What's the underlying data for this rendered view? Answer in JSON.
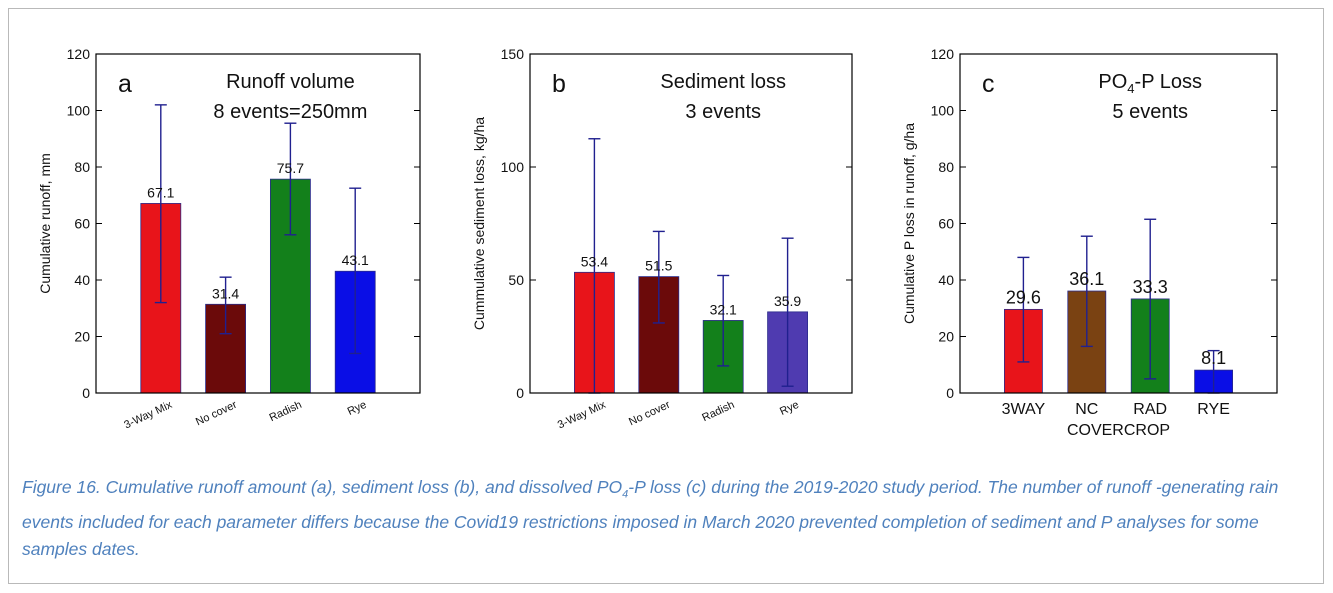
{
  "caption": {
    "p1": "Figure 16.  Cumulative runoff amount (a), sediment loss (b), and dissolved PO",
    "sub1": "4",
    "p2": "-P loss (c) during the 2019-2020 study period. The number of runoff -generating rain events included for each parameter differs because the Covid19 restrictions imposed in March 2020 prevented completion of sediment and P analyses for some samples dates."
  },
  "chart_data": [
    {
      "type": "bar",
      "panel_letter": "a",
      "title_lines": [
        "Runoff volume",
        "8 events=250mm"
      ],
      "ylabel": "Cumulative runoff, mm",
      "xlabel": "",
      "ylim": [
        0,
        120
      ],
      "yticks": [
        0,
        20,
        40,
        60,
        80,
        100,
        120
      ],
      "categories": [
        "3-Way Mix",
        "No cover",
        "Radish",
        "Rye"
      ],
      "values": [
        67.1,
        31.4,
        75.7,
        43.1
      ],
      "value_labels": [
        "67.1",
        "31.4",
        "75.7",
        "43.1"
      ],
      "error_low": [
        32,
        21,
        56,
        14
      ],
      "error_high": [
        102,
        41,
        95.5,
        72.5
      ],
      "colors": [
        "#e8141a",
        "#6b0a0a",
        "#13801b",
        "#0a0ee6"
      ]
    },
    {
      "type": "bar",
      "panel_letter": "b",
      "title_lines": [
        "Sediment loss",
        "3 events"
      ],
      "ylabel": "Cummulative sediment loss, kg/ha",
      "xlabel": "",
      "ylim": [
        0,
        150
      ],
      "yticks": [
        0,
        50,
        100,
        150
      ],
      "categories": [
        "3-Way Mix",
        "No cover",
        "Radish",
        "Rye"
      ],
      "values": [
        53.4,
        51.5,
        32.1,
        35.9
      ],
      "value_labels": [
        "53.4",
        "51.5",
        "32.1",
        "35.9"
      ],
      "error_low": [
        0,
        31,
        12,
        3
      ],
      "error_high": [
        112.5,
        71.5,
        52,
        68.5
      ],
      "colors": [
        "#e8141a",
        "#6b0a0a",
        "#13801b",
        "#4f3bb0"
      ]
    },
    {
      "type": "bar",
      "panel_letter": "c",
      "title_lines": [
        "PO4-P Loss",
        "5 events"
      ],
      "ylabel": "Cumulative P loss in runoff, g/ha",
      "xlabel": "COVERCROP",
      "ylim": [
        0,
        120
      ],
      "yticks": [
        0,
        20,
        40,
        60,
        80,
        100,
        120
      ],
      "categories": [
        "3WAY",
        "NC",
        "RAD",
        "RYE"
      ],
      "values": [
        29.6,
        36.1,
        33.3,
        8.1
      ],
      "value_labels": [
        "29.6",
        "36.1",
        "33.3",
        "8.1"
      ],
      "error_low": [
        11,
        16.5,
        5,
        0
      ],
      "error_high": [
        48,
        55.5,
        61.5,
        15
      ],
      "colors": [
        "#e8141a",
        "#7a4212",
        "#13801b",
        "#0a0ee6"
      ]
    }
  ]
}
